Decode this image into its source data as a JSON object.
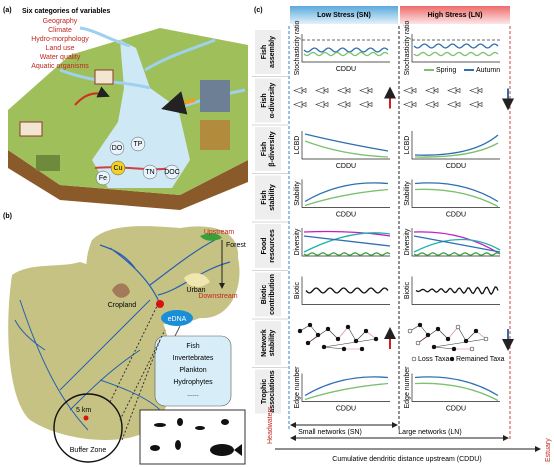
{
  "panel_a": {
    "label": "(a)",
    "title": "Six categories of variables",
    "categories": [
      "Geography",
      "Climate",
      "Hydro-morphology",
      "Land use",
      "Water quality",
      "Aquatic organisms"
    ],
    "map_labels": [
      "DO",
      "TP",
      "TN",
      "DOC",
      "Cu",
      "Fe"
    ]
  },
  "panel_b": {
    "label": "(b)",
    "upstream": "Upstream",
    "downstream": "Downstream",
    "land_uses": [
      "Forest",
      "Cropland",
      "Urban"
    ],
    "edna": "eDNA",
    "taxa": [
      "Fish",
      "Invertebrates",
      "Plankton",
      "Hydrophytes",
      "......"
    ],
    "scale": "5 km",
    "buffer": "Buffer Zone"
  },
  "panel_c": {
    "label": "(c)",
    "low_stress": "Low Stress (SN)",
    "high_stress": "High Stress (LN)",
    "x_label": "CDDU",
    "rows": [
      {
        "label": "Fish assembly",
        "y_label": "Stochasticity ratio"
      },
      {
        "label": "Fish α-diversity"
      },
      {
        "label": "Fish β-diversity",
        "y_label": "LCBD"
      },
      {
        "label": "Fish stability",
        "y_label": "Stability"
      },
      {
        "label": "Food resources",
        "y_label": "Diversity"
      },
      {
        "label": "Biotic contribution",
        "y_label": "Biotic"
      },
      {
        "label": "Network stability"
      },
      {
        "label": "Trophic associations",
        "y_label": "Edge number"
      }
    ],
    "season_legend": [
      "Spring",
      "Autumn"
    ],
    "taxa_legend": [
      "Loss Taxa",
      "Remained Taxa"
    ],
    "headwaters": "Headwaters",
    "estuary": "Estuary",
    "small_networks": "Small networks (SN)",
    "large_networks": "Large networks (LN)",
    "axis_title": "Cumulative dendritic distance upstream (CDDU)"
  }
}
